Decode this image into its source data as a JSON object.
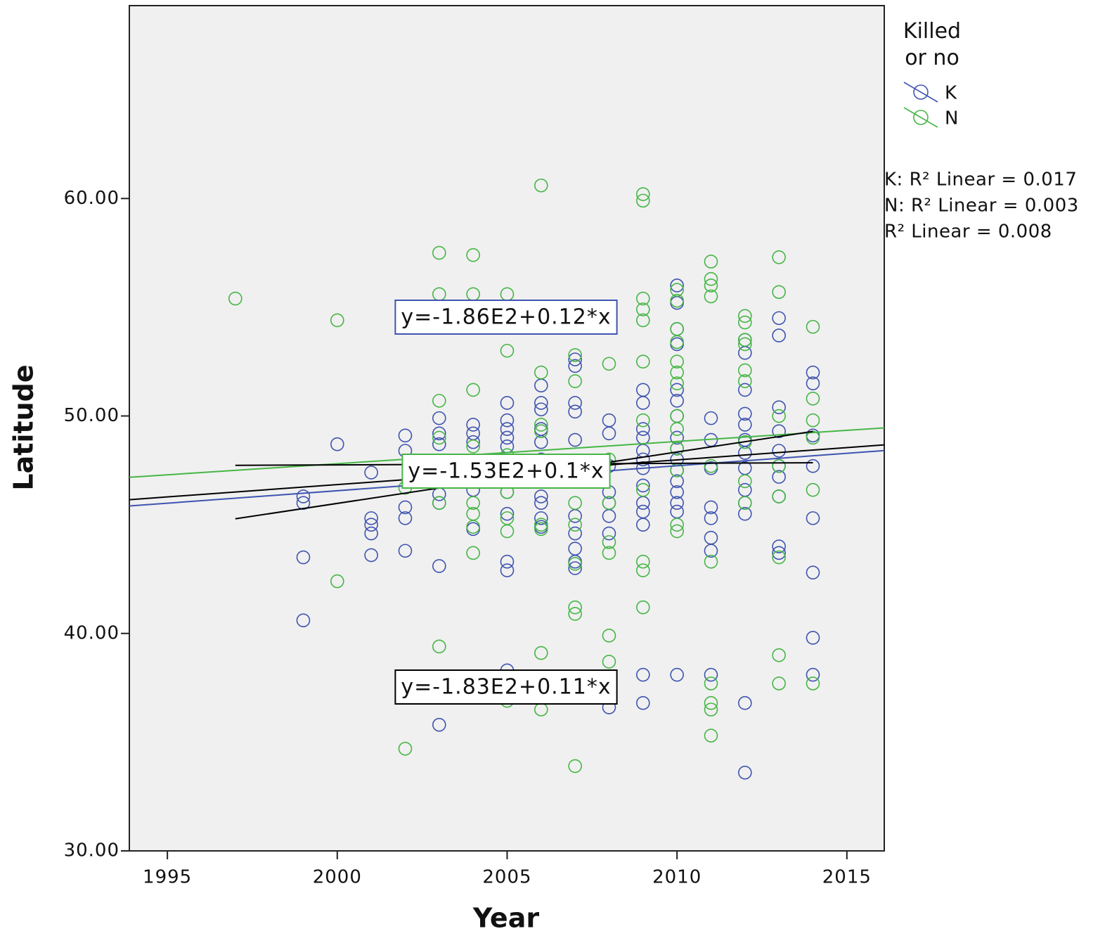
{
  "chart_data": {
    "type": "scatter",
    "x_label": "Year",
    "y_label": "Latitude",
    "xlim": [
      1993.88,
      2016.1
    ],
    "ylim": [
      30,
      68.87
    ],
    "xticks": [
      1995,
      2000,
      2005,
      2010,
      2015
    ],
    "yticks": [
      {
        "value": 30,
        "label": "30.00"
      },
      {
        "value": 40,
        "label": "40.00"
      },
      {
        "value": 50,
        "label": "50.00"
      },
      {
        "value": 60,
        "label": "60.00"
      }
    ],
    "legend_title": "Killed or no",
    "legend_position": "right",
    "series": [
      {
        "name": "K",
        "color": "#3f54b0",
        "x": [
          1999,
          1999,
          1999,
          1999,
          2000,
          2001,
          2001,
          2001,
          2001,
          2001,
          2002,
          2002,
          2002,
          2002,
          2002,
          2003,
          2003,
          2003,
          2003,
          2003,
          2003,
          2003,
          2003,
          2004,
          2004,
          2004,
          2004,
          2004,
          2005,
          2005,
          2005,
          2005,
          2005,
          2005,
          2005,
          2005,
          2005,
          2005,
          2005,
          2006,
          2006,
          2006,
          2006,
          2006,
          2006,
          2006,
          2006,
          2006,
          2006,
          2006,
          2007,
          2007,
          2007,
          2007,
          2007,
          2007,
          2007,
          2007,
          2007,
          2007,
          2007,
          2008,
          2008,
          2008,
          2008,
          2008,
          2008,
          2008,
          2008,
          2009,
          2009,
          2009,
          2009,
          2009,
          2009,
          2009,
          2009,
          2009,
          2009,
          2009,
          2009,
          2009,
          2010,
          2010,
          2010,
          2010,
          2010,
          2010,
          2010,
          2010,
          2010,
          2010,
          2010,
          2010,
          2010,
          2010,
          2010,
          2010,
          2011,
          2011,
          2011,
          2011,
          2011,
          2011,
          2011,
          2011,
          2012,
          2012,
          2012,
          2012,
          2012,
          2012,
          2012,
          2012,
          2012,
          2012,
          2012,
          2012,
          2012,
          2013,
          2013,
          2013,
          2013,
          2013,
          2013,
          2013,
          2013,
          2013,
          2013,
          2014,
          2014,
          2014,
          2014,
          2014,
          2014,
          2014,
          2014
        ],
        "values": [
          46.3,
          46.0,
          43.5,
          40.6,
          48.7,
          47.4,
          45.3,
          45.0,
          44.6,
          43.6,
          49.1,
          48.4,
          45.8,
          45.3,
          43.8,
          49.9,
          49.2,
          48.7,
          47.5,
          46.4,
          46.0,
          43.1,
          35.8,
          49.6,
          49.2,
          48.8,
          46.6,
          44.8,
          50.6,
          49.8,
          49.4,
          49.0,
          48.6,
          47.5,
          46.5,
          45.5,
          43.3,
          42.9,
          38.3,
          51.4,
          50.6,
          50.3,
          49.4,
          48.8,
          48.0,
          47.0,
          46.3,
          46.0,
          45.3,
          44.9,
          52.6,
          52.3,
          50.6,
          50.2,
          48.9,
          47.7,
          45.4,
          44.6,
          43.9,
          43.3,
          43.0,
          49.8,
          49.2,
          47.7,
          46.5,
          46.0,
          45.4,
          44.6,
          36.6,
          51.2,
          50.6,
          49.4,
          49.0,
          48.4,
          48.0,
          47.6,
          46.8,
          46.0,
          45.6,
          45.0,
          38.1,
          36.8,
          56.0,
          55.2,
          54.0,
          53.3,
          51.2,
          50.7,
          50.0,
          49.0,
          48.5,
          48.0,
          47.5,
          47.0,
          46.5,
          46.0,
          45.6,
          38.1,
          49.9,
          48.9,
          47.6,
          45.8,
          45.3,
          44.4,
          43.8,
          38.1,
          53.5,
          52.9,
          51.2,
          50.1,
          49.6,
          48.9,
          48.3,
          47.6,
          46.6,
          46.0,
          45.5,
          36.8,
          33.6,
          54.5,
          53.7,
          50.4,
          49.3,
          48.4,
          47.7,
          47.2,
          46.3,
          44.0,
          43.7,
          52.0,
          51.5,
          49.1,
          47.7,
          45.3,
          42.8,
          39.8,
          38.1
        ]
      },
      {
        "name": "N",
        "color": "#46b646",
        "x": [
          1997,
          2000,
          2000,
          2002,
          2002,
          2003,
          2003,
          2003,
          2003,
          2003,
          2003,
          2004,
          2004,
          2004,
          2004,
          2004,
          2004,
          2004,
          2004,
          2005,
          2005,
          2005,
          2005,
          2005,
          2005,
          2005,
          2006,
          2006,
          2006,
          2006,
          2006,
          2006,
          2006,
          2006,
          2006,
          2007,
          2007,
          2007,
          2007,
          2007,
          2007,
          2007,
          2007,
          2008,
          2008,
          2008,
          2008,
          2008,
          2008,
          2008,
          2009,
          2009,
          2009,
          2009,
          2009,
          2009,
          2009,
          2009,
          2009,
          2009,
          2009,
          2010,
          2010,
          2010,
          2010,
          2010,
          2010,
          2010,
          2010,
          2010,
          2010,
          2010,
          2010,
          2010,
          2011,
          2011,
          2011,
          2011,
          2011,
          2011,
          2011,
          2011,
          2011,
          2011,
          2012,
          2012,
          2012,
          2012,
          2012,
          2012,
          2012,
          2012,
          2012,
          2013,
          2013,
          2013,
          2013,
          2013,
          2013,
          2013,
          2013,
          2014,
          2014,
          2014,
          2014,
          2014,
          2014
        ],
        "values": [
          55.4,
          54.4,
          42.4,
          46.7,
          34.7,
          57.5,
          55.6,
          50.7,
          49.0,
          46.0,
          39.4,
          57.4,
          55.6,
          51.2,
          48.6,
          46.0,
          45.5,
          44.9,
          43.7,
          55.6,
          53.0,
          48.2,
          46.5,
          45.3,
          44.7,
          36.9,
          52.0,
          49.6,
          49.3,
          47.5,
          45.0,
          44.8,
          39.1,
          36.5,
          60.6,
          52.8,
          51.6,
          46.0,
          45.0,
          43.2,
          41.2,
          40.9,
          33.9,
          52.4,
          48.0,
          46.0,
          44.2,
          43.7,
          39.9,
          38.7,
          60.2,
          59.9,
          55.4,
          54.9,
          54.4,
          52.5,
          49.8,
          46.6,
          43.3,
          42.9,
          41.2,
          55.8,
          55.3,
          54.0,
          53.4,
          52.5,
          52.0,
          51.5,
          50.0,
          49.4,
          48.5,
          47.5,
          45.0,
          44.7,
          57.1,
          56.3,
          56.0,
          55.5,
          47.7,
          43.3,
          37.7,
          36.8,
          36.5,
          35.3,
          54.6,
          54.3,
          53.5,
          53.3,
          52.1,
          51.6,
          48.8,
          47.0,
          46.0,
          57.3,
          55.7,
          50.0,
          47.7,
          46.3,
          43.5,
          39.0,
          37.7,
          54.1,
          50.8,
          49.8,
          49.0,
          46.6,
          37.7
        ]
      }
    ],
    "fit_lines": [
      {
        "color": "#3f54b0",
        "x": [
          1993.88,
          2016.1
        ],
        "values": [
          45.86,
          48.41
        ],
        "label": "y=-1.86E2+0.12*x"
      },
      {
        "color": "#46b646",
        "x": [
          1993.88,
          2016.1
        ],
        "values": [
          47.18,
          49.45
        ],
        "label": "y=-1.53E2+0.1*x"
      },
      {
        "color": "#000000",
        "x": [
          1993.88,
          2016.1
        ],
        "values": [
          46.15,
          48.67
        ],
        "label": "y=-1.83E2+0.11*x"
      },
      {
        "color": "#000000",
        "x": [
          1997,
          2014
        ],
        "values": [
          47.73,
          47.85
        ]
      },
      {
        "color": "#000000",
        "x": [
          1997,
          2014
        ],
        "values": [
          45.27,
          49.29
        ]
      }
    ],
    "r2_labels": [
      "K: R² Linear = 0.017",
      "N: R² Linear = 0.003",
      "R² Linear = 0.008"
    ]
  }
}
